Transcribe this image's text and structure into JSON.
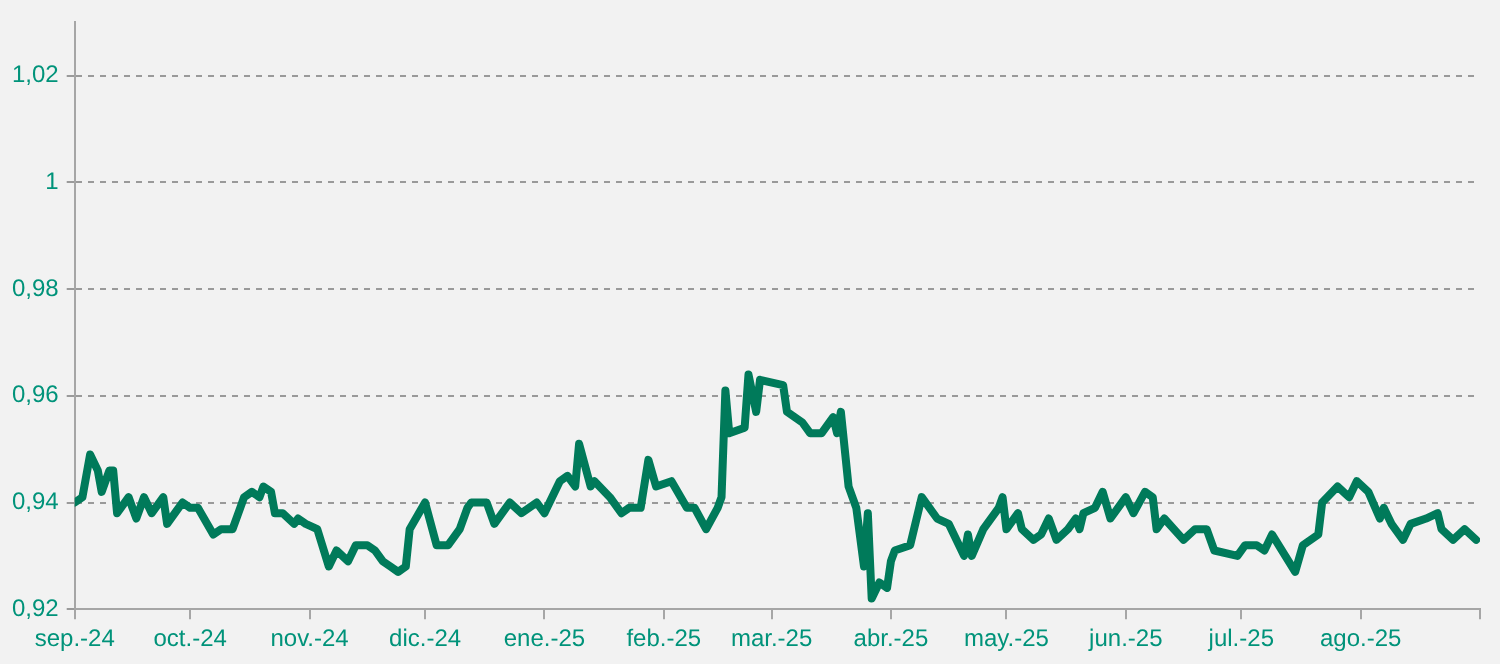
{
  "chart_data": {
    "type": "line",
    "x": [
      "2024-09-01",
      "2024-09-03",
      "2024-09-05",
      "2024-09-07",
      "2024-09-08",
      "2024-09-10",
      "2024-09-11",
      "2024-09-12",
      "2024-09-15",
      "2024-09-17",
      "2024-09-19",
      "2024-09-21",
      "2024-09-24",
      "2024-09-25",
      "2024-09-29",
      "2024-10-01",
      "2024-10-03",
      "2024-10-07",
      "2024-10-09",
      "2024-10-12",
      "2024-10-15",
      "2024-10-17",
      "2024-10-19",
      "2024-10-20",
      "2024-10-22",
      "2024-10-23",
      "2024-10-25",
      "2024-10-28",
      "2024-10-29",
      "2024-10-31",
      "2024-11-03",
      "2024-11-06",
      "2024-11-08",
      "2024-11-11",
      "2024-11-13",
      "2024-11-16",
      "2024-11-18",
      "2024-11-20",
      "2024-11-22",
      "2024-11-24",
      "2024-11-26",
      "2024-11-27",
      "2024-12-01",
      "2024-12-04",
      "2024-12-07",
      "2024-12-10",
      "2024-12-12",
      "2024-12-13",
      "2024-12-17",
      "2024-12-19",
      "2024-12-23",
      "2024-12-26",
      "2024-12-30",
      "2025-01-01",
      "2025-01-05",
      "2025-01-07",
      "2025-01-09",
      "2025-01-10",
      "2025-01-13",
      "2025-01-14",
      "2025-01-18",
      "2025-01-21",
      "2025-01-23",
      "2025-01-26",
      "2025-01-28",
      "2025-01-30",
      "2025-02-03",
      "2025-02-07",
      "2025-02-09",
      "2025-02-12",
      "2025-02-15",
      "2025-02-16",
      "2025-02-17",
      "2025-02-18",
      "2025-02-22",
      "2025-02-23",
      "2025-02-25",
      "2025-02-26",
      "2025-03-04",
      "2025-03-05",
      "2025-03-09",
      "2025-03-11",
      "2025-03-14",
      "2025-03-17",
      "2025-03-18",
      "2025-03-19",
      "2025-03-21",
      "2025-03-23",
      "2025-03-25",
      "2025-03-26",
      "2025-03-27",
      "2025-03-29",
      "2025-03-31",
      "2025-04-01",
      "2025-04-02",
      "2025-04-06",
      "2025-04-09",
      "2025-04-13",
      "2025-04-16",
      "2025-04-20",
      "2025-04-21",
      "2025-04-22",
      "2025-04-25",
      "2025-04-29",
      "2025-04-30",
      "2025-05-01",
      "2025-05-04",
      "2025-05-05",
      "2025-05-08",
      "2025-05-10",
      "2025-05-12",
      "2025-05-14",
      "2025-05-17",
      "2025-05-19",
      "2025-05-20",
      "2025-05-21",
      "2025-05-24",
      "2025-05-26",
      "2025-05-28",
      "2025-06-01",
      "2025-06-03",
      "2025-06-06",
      "2025-06-08",
      "2025-06-09",
      "2025-06-11",
      "2025-06-16",
      "2025-06-19",
      "2025-06-22",
      "2025-06-24",
      "2025-06-30",
      "2025-07-02",
      "2025-07-05",
      "2025-07-07",
      "2025-07-09",
      "2025-07-15",
      "2025-07-17",
      "2025-07-21",
      "2025-07-22",
      "2025-07-26",
      "2025-07-29",
      "2025-07-31",
      "2025-08-03",
      "2025-08-06",
      "2025-08-07",
      "2025-08-09",
      "2025-08-12",
      "2025-08-14",
      "2025-08-18",
      "2025-08-21",
      "2025-08-22",
      "2025-08-25",
      "2025-08-28",
      "2025-08-31"
    ],
    "series": [
      {
        "color": "#007a5a",
        "values": [
          0.94,
          0.941,
          0.949,
          0.946,
          0.942,
          0.946,
          0.946,
          0.938,
          0.941,
          0.937,
          0.941,
          0.938,
          0.941,
          0.936,
          0.94,
          0.939,
          0.939,
          0.934,
          0.935,
          0.935,
          0.941,
          0.942,
          0.941,
          0.943,
          0.942,
          0.938,
          0.938,
          0.936,
          0.937,
          0.936,
          0.935,
          0.928,
          0.931,
          0.929,
          0.932,
          0.932,
          0.931,
          0.929,
          0.928,
          0.927,
          0.928,
          0.935,
          0.94,
          0.932,
          0.932,
          0.935,
          0.939,
          0.94,
          0.94,
          0.936,
          0.94,
          0.938,
          0.94,
          0.938,
          0.944,
          0.945,
          0.943,
          0.951,
          0.943,
          0.944,
          0.941,
          0.938,
          0.939,
          0.939,
          0.948,
          0.943,
          0.944,
          0.939,
          0.939,
          0.935,
          0.939,
          0.941,
          0.961,
          0.953,
          0.954,
          0.964,
          0.957,
          0.963,
          0.962,
          0.957,
          0.955,
          0.953,
          0.953,
          0.956,
          0.953,
          0.957,
          0.943,
          0.939,
          0.928,
          0.938,
          0.922,
          0.925,
          0.924,
          0.929,
          0.931,
          0.932,
          0.941,
          0.937,
          0.936,
          0.93,
          0.934,
          0.93,
          0.935,
          0.939,
          0.941,
          0.935,
          0.938,
          0.935,
          0.933,
          0.934,
          0.937,
          0.933,
          0.935,
          0.937,
          0.935,
          0.938,
          0.939,
          0.942,
          0.937,
          0.941,
          0.938,
          0.942,
          0.941,
          0.935,
          0.937,
          0.933,
          0.935,
          0.935,
          0.931,
          0.93,
          0.932,
          0.932,
          0.931,
          0.934,
          0.927,
          0.932,
          0.934,
          0.94,
          0.943,
          0.941,
          0.944,
          0.942,
          0.937,
          0.939,
          0.936,
          0.933,
          0.936,
          0.937,
          0.938,
          0.935,
          0.933,
          0.935,
          0.933
        ]
      }
    ],
    "xlim": [
      "2024-09-01",
      "2025-09-01"
    ],
    "xticks": [
      {
        "value": "2024-09-01",
        "label": "sep.-24"
      },
      {
        "value": "2024-10-01",
        "label": "oct.-24"
      },
      {
        "value": "2024-11-01",
        "label": "nov.-24"
      },
      {
        "value": "2024-12-01",
        "label": "dic.-24"
      },
      {
        "value": "2025-01-01",
        "label": "ene.-25"
      },
      {
        "value": "2025-02-01",
        "label": "feb.-25"
      },
      {
        "value": "2025-03-01",
        "label": "mar.-25"
      },
      {
        "value": "2025-04-01",
        "label": "abr.-25"
      },
      {
        "value": "2025-05-01",
        "label": "may.-25"
      },
      {
        "value": "2025-06-01",
        "label": "jun.-25"
      },
      {
        "value": "2025-07-01",
        "label": "jul.-25"
      },
      {
        "value": "2025-08-01",
        "label": "ago.-25"
      },
      {
        "value": "2025-09-01",
        "label": null
      }
    ],
    "ylim": [
      0.92,
      1.03
    ],
    "yticks": [
      {
        "value": 0.92,
        "label": "0,92"
      },
      {
        "value": 0.94,
        "label": "0,94"
      },
      {
        "value": 0.96,
        "label": "0,96"
      },
      {
        "value": 0.98,
        "label": "0,98"
      },
      1,
      {
        "value": 1.02,
        "label": "1,02"
      }
    ],
    "grid": "y",
    "legend": false,
    "marker": "none",
    "line_style": "solid"
  }
}
